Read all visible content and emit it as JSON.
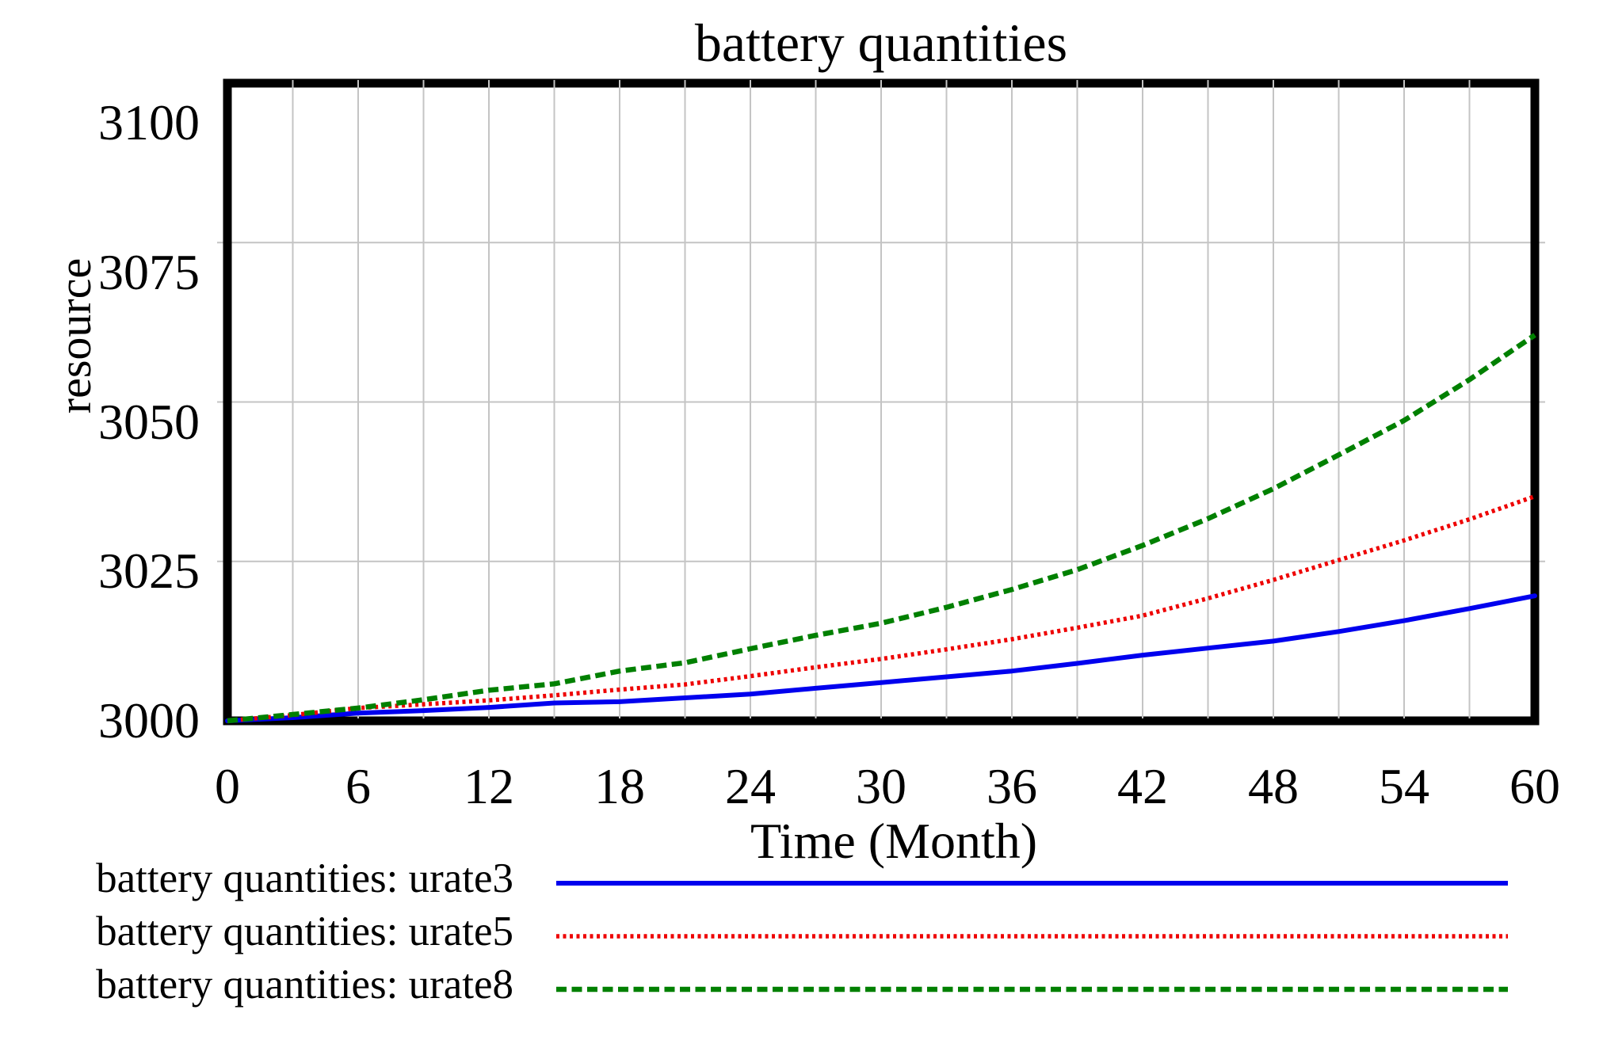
{
  "figure": {
    "title": "battery quantities"
  },
  "y_axis": {
    "label": "resource",
    "ticks": [
      3000,
      3025,
      3050,
      3075,
      3100
    ]
  },
  "x_axis": {
    "label": "Time (Month)",
    "ticks": [
      0,
      6,
      12,
      18,
      24,
      30,
      36,
      42,
      48,
      54,
      60
    ]
  },
  "legend": [
    {
      "label": "battery quantities: urate3"
    },
    {
      "label": "battery quantities: urate5"
    },
    {
      "label": "battery quantities: urate8"
    }
  ],
  "chart_data": {
    "type": "line",
    "title": "battery quantities",
    "xlabel": "Time (Month)",
    "ylabel": "resource",
    "xlim": [
      0,
      60
    ],
    "ylim": [
      3000,
      3100
    ],
    "x_tick_step": 6,
    "x_grid_step": 3,
    "y_tick_step": 25,
    "grid": true,
    "grid_color": "#c4c4c4",
    "border_color": "#000000",
    "legend_position": "bottom-left",
    "x": [
      0,
      3,
      6,
      9,
      12,
      15,
      18,
      21,
      24,
      27,
      30,
      33,
      36,
      39,
      42,
      45,
      48,
      51,
      54,
      57,
      60
    ],
    "series": [
      {
        "name": "battery quantities: urate3",
        "color": "#0000ee",
        "line_style": "solid",
        "values": [
          3000,
          3000.5,
          3001.2,
          3001.6,
          3002.1,
          3002.8,
          3003.0,
          3003.6,
          3004.2,
          3005.1,
          3006.0,
          3006.9,
          3007.8,
          3009.0,
          3010.3,
          3011.4,
          3012.5,
          3014.0,
          3015.7,
          3017.6,
          3019.6
        ]
      },
      {
        "name": "battery quantities: urate5",
        "color": "#ee0000",
        "line_style": "dotted",
        "values": [
          3000,
          3000.9,
          3002.0,
          3002.6,
          3003.2,
          3004.0,
          3004.9,
          3005.7,
          3007.0,
          3008.4,
          3009.7,
          3011.2,
          3012.8,
          3014.6,
          3016.5,
          3019.2,
          3022.1,
          3025.2,
          3028.3,
          3031.6,
          3035.2
        ]
      },
      {
        "name": "battery quantities: urate8",
        "color": "#008000",
        "line_style": "dashed",
        "values": [
          3000,
          3001.0,
          3002.0,
          3003.3,
          3004.8,
          3005.8,
          3007.8,
          3009.1,
          3011.3,
          3013.4,
          3015.3,
          3017.8,
          3020.6,
          3023.7,
          3027.5,
          3031.7,
          3036.4,
          3041.7,
          3047.1,
          3053.5,
          3060.5
        ]
      }
    ]
  }
}
